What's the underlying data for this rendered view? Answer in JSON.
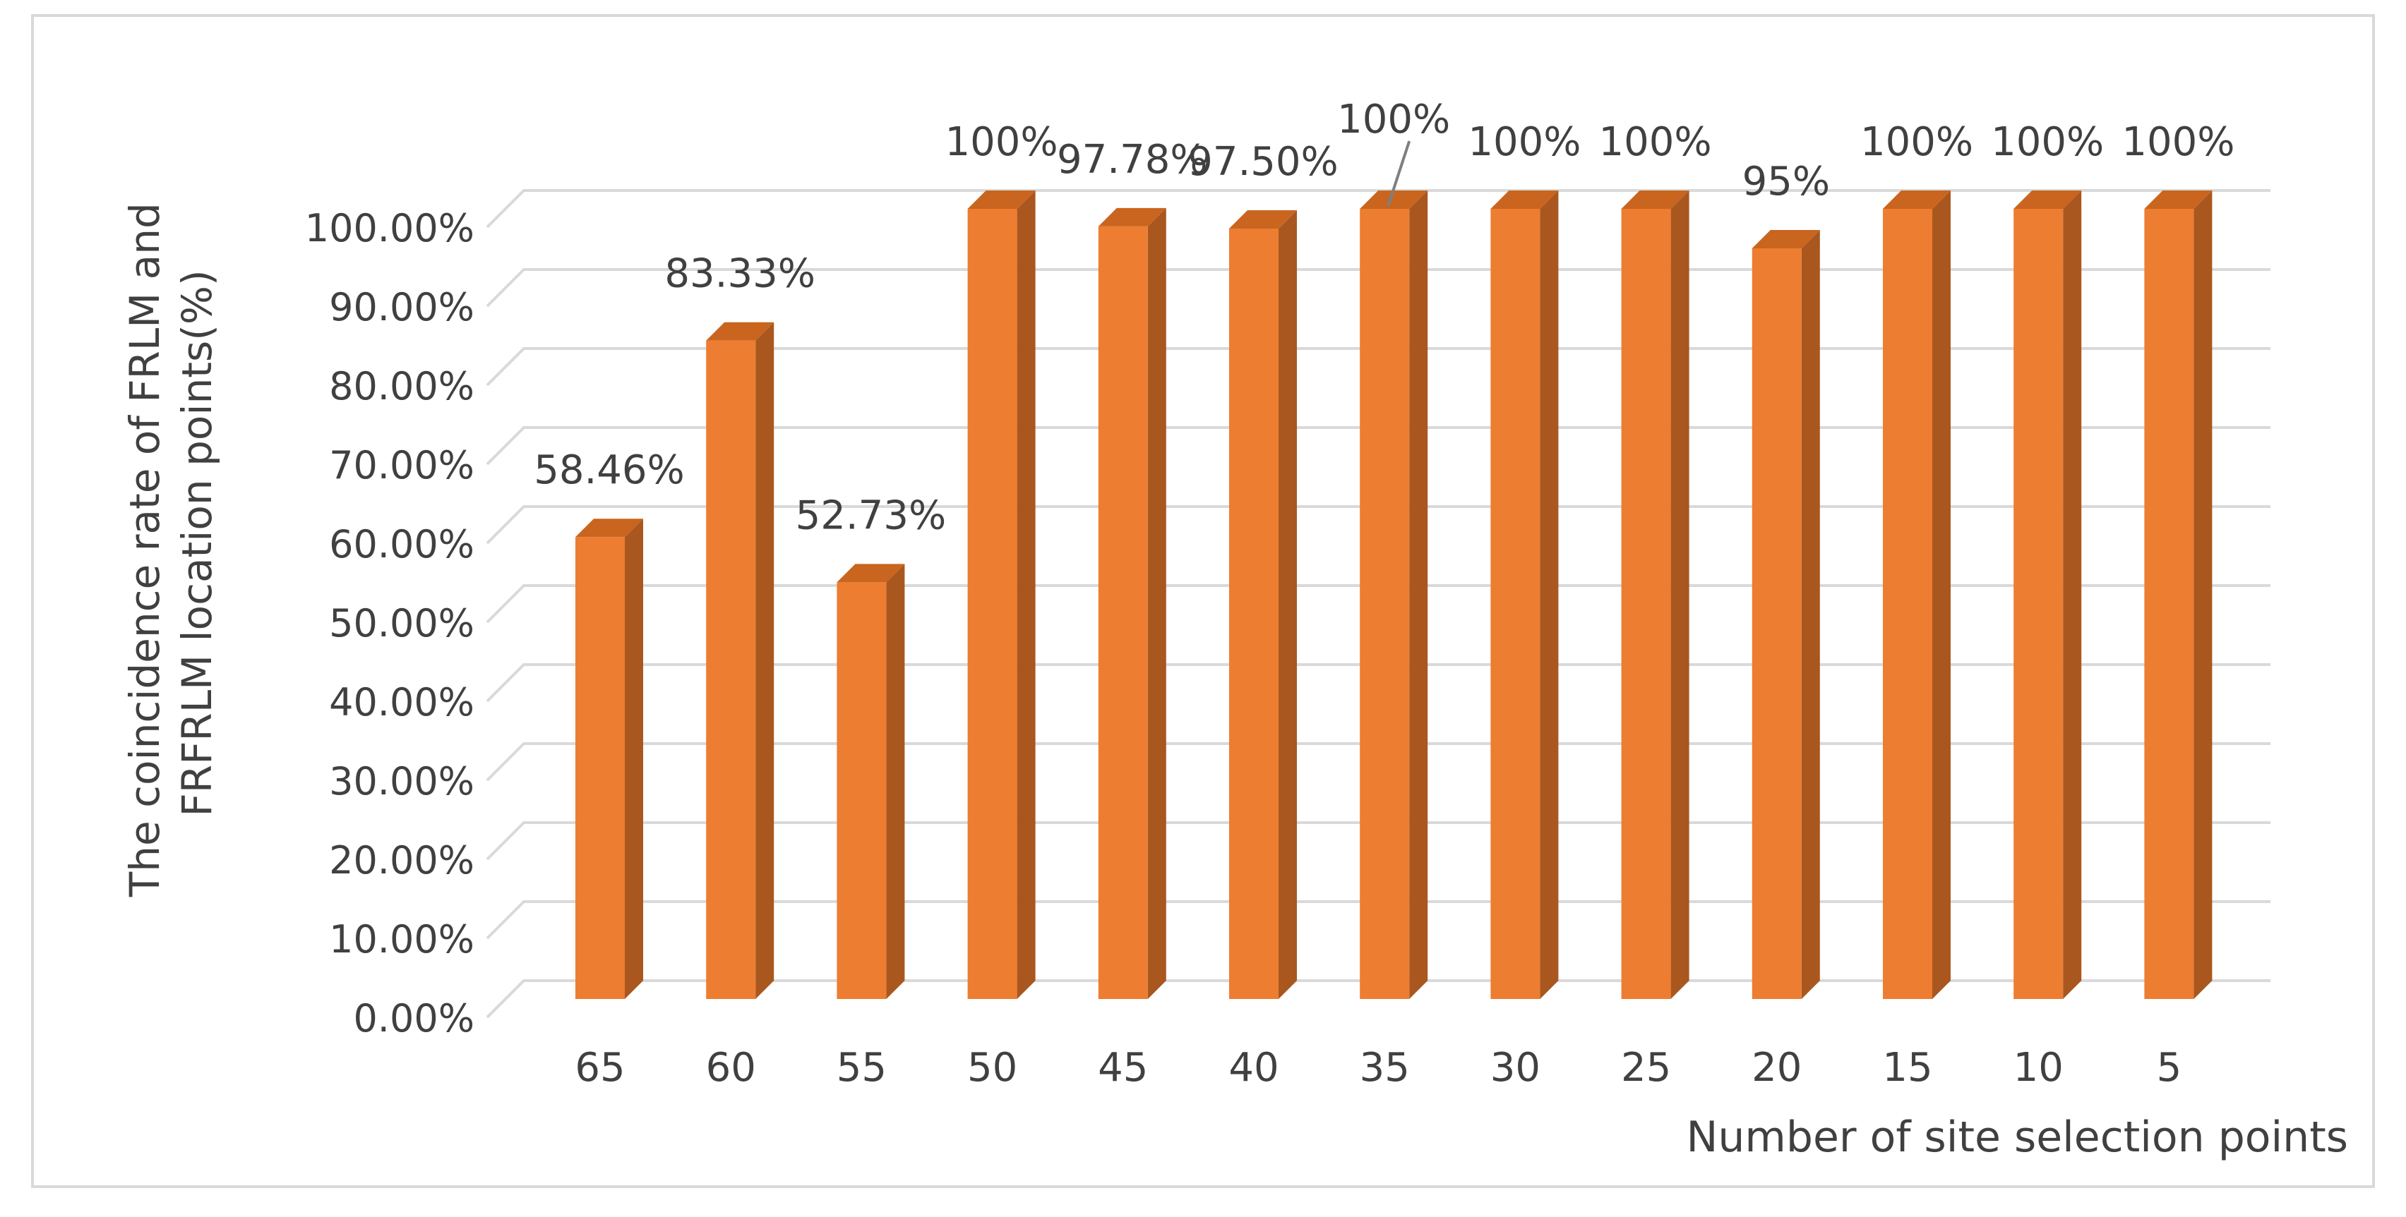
{
  "chart_data": {
    "type": "bar",
    "style": "3d-column",
    "title": "",
    "xlabel": "Number of site selection points",
    "ylabel_lines": [
      "The coincidence rate of FRLM and",
      "FRFRLM location points(%)"
    ],
    "categories": [
      "65",
      "60",
      "55",
      "50",
      "45",
      "40",
      "35",
      "30",
      "25",
      "20",
      "15",
      "10",
      "5"
    ],
    "values": [
      58.46,
      83.33,
      52.73,
      100,
      97.78,
      97.5,
      100,
      100,
      100,
      95,
      100,
      100,
      100
    ],
    "data_labels": [
      "58.46%",
      "83.33%",
      "52.73%",
      "100%",
      "97.78%",
      "97.50%",
      "100%",
      "100%",
      "100%",
      "95%",
      "100%",
      "100%",
      "100%"
    ],
    "yticks": [
      "0.00%",
      "10.00%",
      "20.00%",
      "30.00%",
      "40.00%",
      "50.00%",
      "60.00%",
      "70.00%",
      "80.00%",
      "90.00%",
      "100.00%"
    ],
    "ylim": [
      0,
      100
    ],
    "grid": true,
    "legend": "none",
    "colors": {
      "bar_front": "#ED7D31",
      "bar_side": "#A9571F",
      "bar_top": "#C9651F",
      "grid": "#D9D9D9",
      "text": "#404040",
      "frame": "#D9D9D9"
    }
  }
}
